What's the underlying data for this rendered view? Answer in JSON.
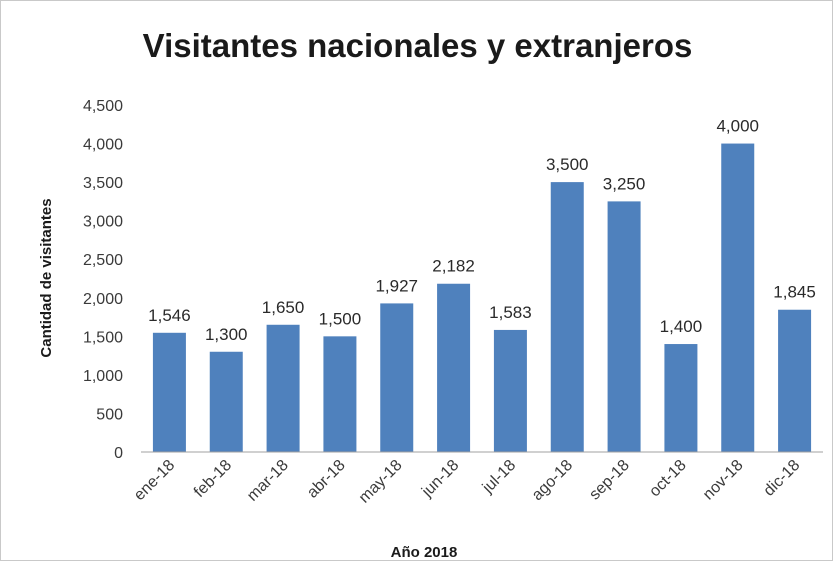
{
  "chart_data": {
    "type": "bar",
    "title": "Visitantes nacionales y extranjeros",
    "xlabel": "Año 2018",
    "ylabel": "Cantidad de visitantes",
    "categories": [
      "ene-18",
      "feb-18",
      "mar-18",
      "abr-18",
      "may-18",
      "jun-18",
      "jul-18",
      "ago-18",
      "sep-18",
      "oct-18",
      "nov-18",
      "dic-18"
    ],
    "values": [
      1546,
      1300,
      1650,
      1500,
      1927,
      2182,
      1583,
      3500,
      3250,
      1400,
      4000,
      1845
    ],
    "value_labels": [
      "1,546",
      "1,300",
      "1,650",
      "1,500",
      "1,927",
      "2,182",
      "1,583",
      "3,500",
      "3,250",
      "1,400",
      "4,000",
      "1,845"
    ],
    "yticks": [
      0,
      500,
      1000,
      1500,
      2000,
      2500,
      3000,
      3500,
      4000,
      4500
    ],
    "ytick_labels": [
      "0",
      "500",
      "1,000",
      "1,500",
      "2,000",
      "2,500",
      "3,000",
      "3,500",
      "4,000",
      "4,500"
    ],
    "ylim": [
      0,
      4500
    ],
    "grid": false,
    "legend": "none",
    "bar_color": "#4f81bd"
  }
}
